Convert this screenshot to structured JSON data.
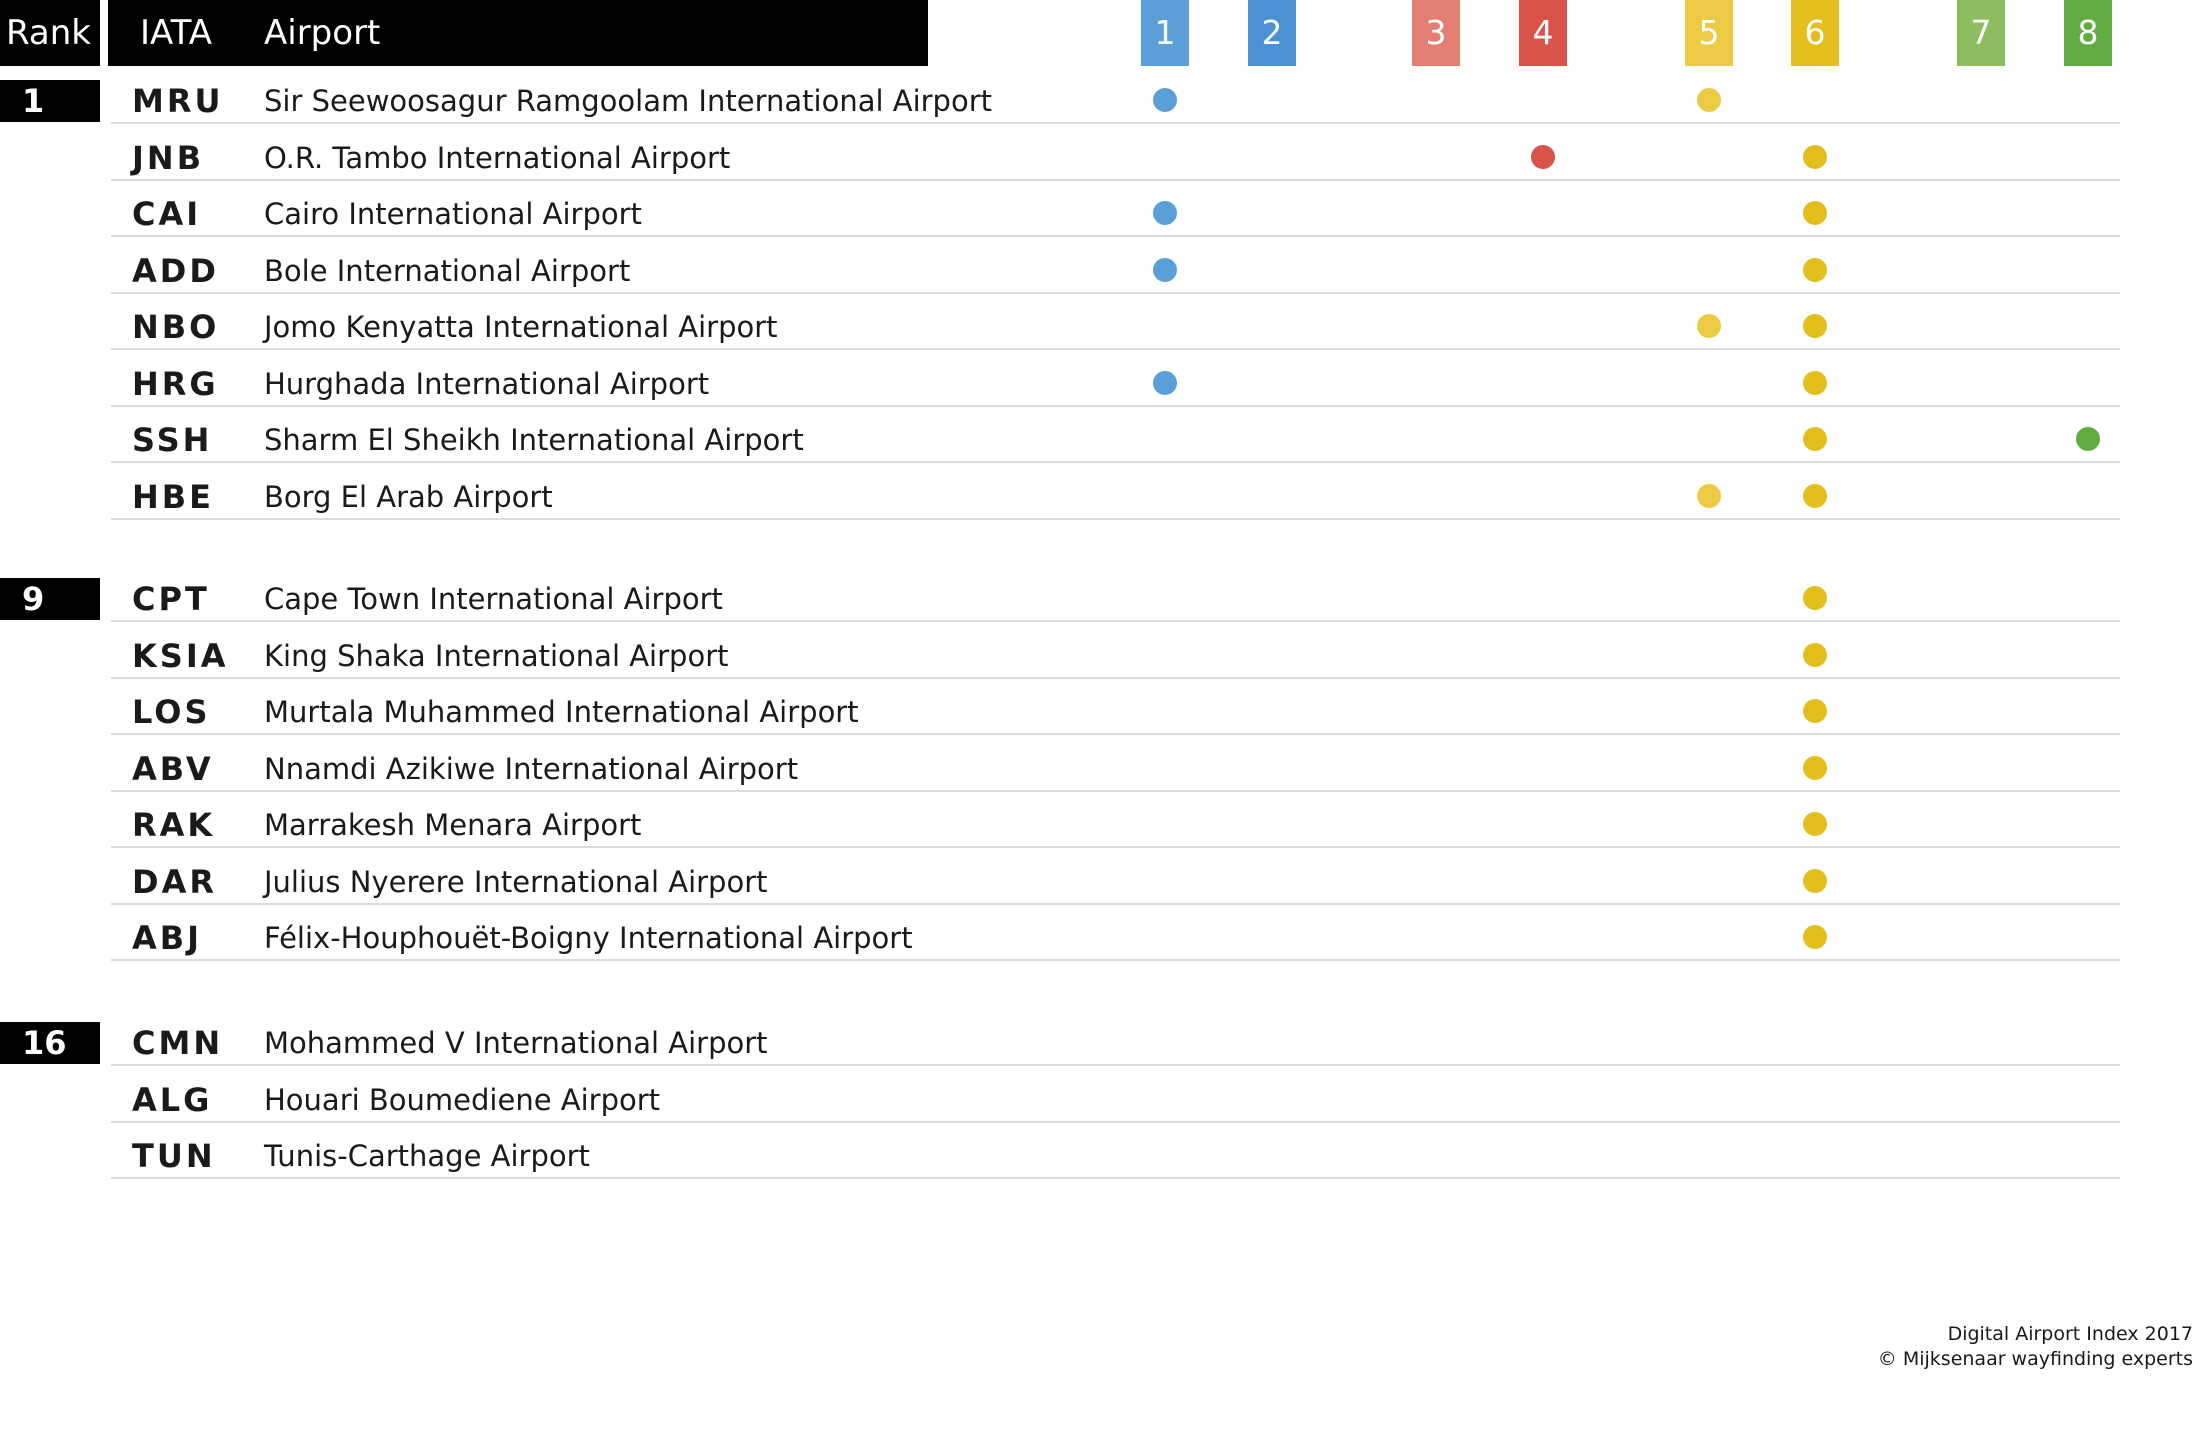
{
  "headers": {
    "rank": "Rank",
    "iata": "IATA",
    "airport": "Airport"
  },
  "categories": [
    {
      "label": "1",
      "color": "#5b9fd8"
    },
    {
      "label": "2",
      "color": "#4a91d3"
    },
    {
      "label": "3",
      "color": "#e27f72"
    },
    {
      "label": "4",
      "color": "#d9534a"
    },
    {
      "label": "5",
      "color": "#ecca43"
    },
    {
      "label": "6",
      "color": "#e3bf1e"
    },
    {
      "label": "7",
      "color": "#8cbd5e"
    },
    {
      "label": "8",
      "color": "#62ab41"
    }
  ],
  "chart_data": {
    "type": "table",
    "columns": [
      "Rank",
      "IATA",
      "Airport",
      "1",
      "2",
      "3",
      "4",
      "5",
      "6",
      "7",
      "8"
    ],
    "groups": [
      {
        "rank": "1",
        "rows": [
          {
            "iata": "MRU",
            "airport": "Sir Seewoosagur Ramgoolam International Airport",
            "marks": [
              1,
              5
            ]
          },
          {
            "iata": "JNB",
            "airport": "O.R. Tambo International Airport",
            "marks": [
              4,
              6
            ]
          },
          {
            "iata": "CAI",
            "airport": "Cairo International Airport",
            "marks": [
              1,
              6
            ]
          },
          {
            "iata": "ADD",
            "airport": "Bole International Airport",
            "marks": [
              1,
              6
            ]
          },
          {
            "iata": "NBO",
            "airport": "Jomo Kenyatta International Airport",
            "marks": [
              5,
              6
            ]
          },
          {
            "iata": "HRG",
            "airport": "Hurghada International Airport",
            "marks": [
              1,
              6
            ]
          },
          {
            "iata": "SSH",
            "airport": "Sharm El Sheikh International Airport",
            "marks": [
              6,
              8
            ]
          },
          {
            "iata": "HBE",
            "airport": "Borg El Arab Airport",
            "marks": [
              5,
              6
            ]
          }
        ]
      },
      {
        "rank": "9",
        "rows": [
          {
            "iata": "CPT",
            "airport": "Cape Town International Airport",
            "marks": [
              6
            ]
          },
          {
            "iata": "KSIA",
            "airport": "King Shaka International Airport",
            "marks": [
              6
            ]
          },
          {
            "iata": "LOS",
            "airport": "Murtala Muhammed International Airport",
            "marks": [
              6
            ]
          },
          {
            "iata": "ABV",
            "airport": "Nnamdi Azikiwe International Airport",
            "marks": [
              6
            ]
          },
          {
            "iata": "RAK",
            "airport": "Marrakesh Menara Airport",
            "marks": [
              6
            ]
          },
          {
            "iata": "DAR",
            "airport": "Julius Nyerere International Airport",
            "marks": [
              6
            ]
          },
          {
            "iata": "ABJ",
            "airport": "Félix-Houphouët-Boigny International Airport",
            "marks": [
              6
            ]
          }
        ]
      },
      {
        "rank": "16",
        "rows": [
          {
            "iata": "CMN",
            "airport": "Mohammed V International Airport",
            "marks": []
          },
          {
            "iata": "ALG",
            "airport": "Houari Boumediene Airport",
            "marks": []
          },
          {
            "iata": "TUN",
            "airport": "Tunis-Carthage Airport",
            "marks": []
          }
        ]
      }
    ]
  },
  "footer": {
    "line1": "Digital Airport Index 2017",
    "line2": "© Mijksenaar wayfinding experts"
  }
}
